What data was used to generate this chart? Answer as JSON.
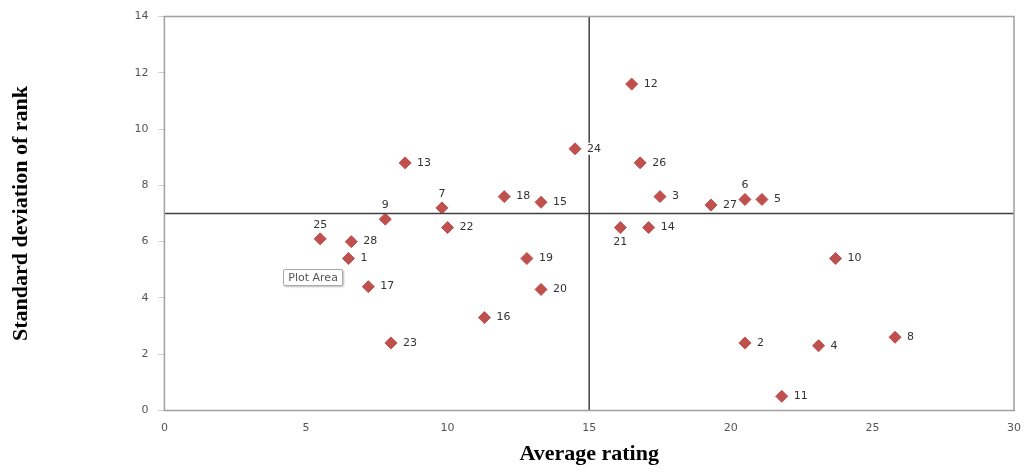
{
  "chart_data": {
    "type": "scatter",
    "xlabel": "Average rating",
    "ylabel": "Standard deviation of rank",
    "x": [
      6.5,
      20.5,
      17.5,
      23.1,
      21.1,
      20.5,
      9.8,
      25.8,
      7.8,
      23.7,
      21.8,
      16.5,
      8.5,
      17.1,
      13.3,
      11.3,
      7.2,
      12.0,
      12.8,
      13.3,
      16.1,
      10.0,
      8.0,
      14.5,
      5.5,
      16.8,
      19.3,
      6.6
    ],
    "series": [
      {
        "color": "#c0504d",
        "values": [
          5.4,
          2.4,
          7.6,
          2.3,
          7.5,
          7.5,
          7.2,
          2.6,
          6.8,
          5.4,
          0.5,
          11.6,
          8.8,
          6.5,
          7.4,
          3.3,
          4.4,
          7.6,
          5.4,
          4.3,
          6.5,
          6.5,
          2.4,
          9.3,
          6.1,
          8.8,
          7.3,
          6.0
        ]
      }
    ],
    "xlim": [
      0,
      30
    ],
    "xticks": [
      0,
      5,
      10,
      15,
      20,
      25,
      30
    ],
    "ylim": [
      0,
      14
    ],
    "yticks": [
      0,
      2,
      4,
      6,
      8,
      10,
      12,
      14
    ],
    "ref_lines": [
      {
        "axis": "x",
        "value": 15,
        "color": "#404040"
      },
      {
        "axis": "y",
        "value": 7,
        "color": "#404040"
      }
    ],
    "marker": "diamond",
    "grid": false,
    "legend": false,
    "annotations": [
      "Plot Area",
      {
        "text": "1",
        "x": 6.5,
        "y": 5.4
      },
      {
        "text": "2",
        "x": 20.5,
        "y": 2.4
      },
      {
        "text": "3",
        "x": 17.5,
        "y": 7.6
      },
      {
        "text": "4",
        "x": 23.1,
        "y": 2.3
      },
      {
        "text": "5",
        "x": 21.1,
        "y": 7.5
      },
      {
        "text": "6",
        "x": 20.5,
        "y": 7.5
      },
      {
        "text": "7",
        "x": 9.8,
        "y": 7.2
      },
      {
        "text": "8",
        "x": 25.8,
        "y": 2.6
      },
      {
        "text": "9",
        "x": 7.8,
        "y": 6.8
      },
      {
        "text": "10",
        "x": 23.7,
        "y": 5.4
      },
      {
        "text": "11",
        "x": 21.8,
        "y": 0.5
      },
      {
        "text": "12",
        "x": 16.5,
        "y": 11.6
      },
      {
        "text": "13",
        "x": 8.5,
        "y": 8.8
      },
      {
        "text": "14",
        "x": 17.1,
        "y": 6.5
      },
      {
        "text": "15",
        "x": 13.3,
        "y": 7.4
      },
      {
        "text": "16",
        "x": 11.3,
        "y": 3.3
      },
      {
        "text": "17",
        "x": 7.2,
        "y": 4.4
      },
      {
        "text": "18",
        "x": 12.0,
        "y": 7.6
      },
      {
        "text": "19",
        "x": 12.8,
        "y": 5.4
      },
      {
        "text": "20",
        "x": 13.3,
        "y": 4.3
      },
      {
        "text": "21",
        "x": 16.1,
        "y": 6.5
      },
      {
        "text": "22",
        "x": 10.0,
        "y": 6.5
      },
      {
        "text": "23",
        "x": 8.0,
        "y": 2.4
      },
      {
        "text": "24",
        "x": 14.5,
        "y": 9.3
      },
      {
        "text": "25",
        "x": 5.5,
        "y": 6.1
      },
      {
        "text": "26",
        "x": 16.8,
        "y": 8.8
      },
      {
        "text": "27",
        "x": 19.3,
        "y": 7.3
      },
      {
        "text": "28",
        "x": 6.6,
        "y": 6.0
      }
    ]
  }
}
